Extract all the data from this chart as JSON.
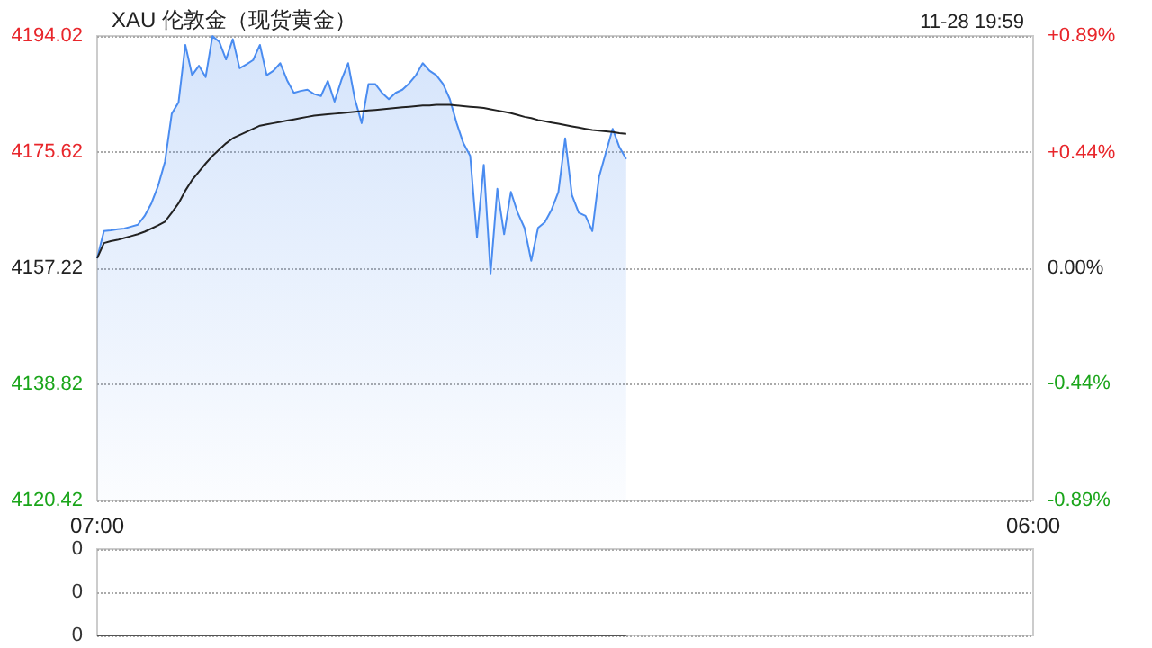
{
  "chart_data": [
    {
      "type": "area",
      "title": "XAU 伦敦金（现货黄金）",
      "annotations": [
        "11-28 19:59"
      ],
      "categories": [
        "07:00",
        null,
        null,
        null,
        null,
        null,
        null,
        null,
        null,
        null,
        null,
        null,
        null,
        null,
        null,
        null,
        null,
        null,
        null,
        null,
        null,
        null,
        null,
        null,
        null,
        null,
        null,
        null,
        null,
        null,
        null,
        null,
        null,
        null,
        null,
        null,
        null,
        null,
        null,
        null,
        null,
        null,
        null,
        null,
        null,
        null,
        null,
        null,
        null,
        null,
        null,
        null,
        null,
        null,
        null,
        null,
        null,
        null,
        null,
        null,
        null,
        null,
        null,
        null,
        null,
        null,
        null,
        null,
        null,
        null,
        null,
        null,
        null,
        null,
        null,
        null,
        null,
        null,
        null,
        null,
        null,
        null,
        null,
        null,
        null,
        null,
        null,
        null,
        null,
        null,
        null,
        null,
        null,
        null,
        null,
        null,
        null,
        null,
        null,
        null,
        null,
        null,
        null,
        null,
        null,
        null,
        null,
        null,
        null,
        null,
        null,
        null,
        null,
        null,
        null,
        null,
        null,
        null,
        null,
        null,
        null,
        null,
        null,
        null,
        null,
        null,
        null,
        null,
        null,
        null,
        null,
        null,
        null,
        null,
        null,
        null,
        null,
        null,
        "06:00"
      ],
      "ylim": [
        4120.42,
        4194.02
      ],
      "yticks": [
        4120.42,
        4138.82,
        4157.22,
        4175.62,
        4194.02
      ],
      "y2lim": [
        -0.89,
        0.89
      ],
      "y2ticks": [
        {
          "value": -0.89,
          "label": "-0.89%"
        },
        {
          "value": -0.44,
          "label": "-0.44%"
        },
        {
          "value": 0,
          "label": "0.00%"
        },
        {
          "value": 0.44,
          "label": "+0.44%"
        },
        {
          "value": 0.89,
          "label": "+0.89%"
        }
      ],
      "grid": "y",
      "series": [
        {
          "color": "#4a8cf0",
          "values": [
            4158.8,
            4163.1,
            4163.2,
            4163.4,
            4163.5,
            4163.8,
            4164.1,
            4165.5,
            4167.5,
            4170.3,
            4174.1,
            4181.7,
            4183.5,
            4192.6,
            4187.8,
            4189.3,
            4187.5,
            4194.0,
            4193.1,
            4190.3,
            4193.5,
            4188.9,
            4189.5,
            4190.2,
            4192.6,
            4187.8,
            4188.5,
            4189.7,
            4187.0,
            4185.0,
            4185.3,
            4185.5,
            4184.8,
            4184.5,
            4186.9,
            4183.6,
            4187.0,
            4189.7,
            4184.0,
            4180.2,
            4186.4,
            4186.4,
            4185.0,
            4184.0,
            4185.0,
            4185.5,
            4186.5,
            4187.8,
            4189.7,
            4188.5,
            4187.8,
            4186.4,
            4184.0,
            4180.2,
            4177.0,
            4175.0,
            4162.1,
            4173.6,
            4156.4,
            4169.8,
            4162.6,
            4169.3,
            4166.0,
            4163.6,
            4158.4,
            4163.6,
            4164.5,
            4166.5,
            4169.3,
            4177.8,
            4168.8,
            4166.0,
            4165.5,
            4163.1,
            4171.7,
            4175.5,
            4179.3,
            4176.4,
            4174.5,
            null,
            null,
            null,
            null,
            null,
            null,
            null,
            null,
            null,
            null,
            null,
            null,
            null,
            null,
            null,
            null,
            null,
            null,
            null,
            null,
            null,
            null,
            null,
            null,
            null,
            null,
            null,
            null,
            null,
            null,
            null,
            null,
            null,
            null,
            null,
            null,
            null,
            null,
            null,
            null,
            null,
            null,
            null,
            null,
            null,
            null,
            null,
            null,
            null,
            null,
            null,
            null,
            null,
            null,
            null,
            null,
            null,
            null,
            null,
            null
          ]
        },
        {
          "type": "line",
          "color": "#222222",
          "values": [
            4158.8,
            4161.2,
            4161.5,
            4161.7,
            4162.0,
            4162.3,
            4162.6,
            4163.0,
            4163.5,
            4164.0,
            4164.6,
            4166.0,
            4167.5,
            4169.5,
            4171.2,
            4172.5,
            4173.8,
            4175.0,
            4176.0,
            4177.0,
            4177.8,
            4178.3,
            4178.8,
            4179.3,
            4179.8,
            4180.0,
            4180.2,
            4180.4,
            4180.6,
            4180.8,
            4181.0,
            4181.2,
            4181.4,
            4181.5,
            4181.6,
            4181.7,
            4181.8,
            4181.9,
            4182.0,
            4182.1,
            4182.2,
            4182.3,
            4182.4,
            4182.5,
            4182.6,
            4182.7,
            4182.8,
            4182.9,
            4183.0,
            4183.0,
            4183.1,
            4183.1,
            4183.1,
            4183.0,
            4182.9,
            4182.8,
            4182.7,
            4182.6,
            4182.4,
            4182.2,
            4182.0,
            4181.8,
            4181.5,
            4181.2,
            4181.0,
            4180.7,
            4180.5,
            4180.3,
            4180.1,
            4179.9,
            4179.7,
            4179.5,
            4179.3,
            4179.1,
            4179.0,
            4178.9,
            4178.8,
            4178.6,
            4178.5,
            null,
            null,
            null,
            null,
            null,
            null,
            null,
            null,
            null,
            null,
            null,
            null,
            null,
            null,
            null,
            null,
            null,
            null,
            null,
            null,
            null,
            null,
            null,
            null,
            null,
            null,
            null,
            null,
            null,
            null,
            null,
            null,
            null,
            null,
            null,
            null,
            null,
            null,
            null,
            null,
            null,
            null,
            null,
            null,
            null,
            null,
            null,
            null,
            null,
            null,
            null,
            null,
            null,
            null,
            null,
            null,
            null,
            null,
            null,
            null
          ]
        }
      ]
    },
    {
      "type": "line",
      "categories": [
        null,
        null,
        null,
        null,
        null,
        null,
        null,
        null,
        null,
        null,
        null,
        null,
        null,
        null,
        null,
        null,
        null,
        null,
        null,
        null,
        null,
        null,
        null,
        null,
        null,
        null,
        null,
        null,
        null,
        null,
        null,
        null,
        null,
        null,
        null,
        null,
        null,
        null,
        null,
        null,
        null,
        null,
        null,
        null,
        null,
        null,
        null,
        null,
        null,
        null,
        null,
        null,
        null,
        null,
        null,
        null,
        null,
        null,
        null,
        null,
        null,
        null,
        null,
        null,
        null,
        null,
        null,
        null,
        null,
        null,
        null,
        null,
        null,
        null,
        null,
        null,
        null,
        null,
        null,
        null,
        null,
        null,
        null,
        null,
        null,
        null,
        null,
        null,
        null,
        null,
        null,
        null,
        null,
        null,
        null,
        null,
        null,
        null,
        null,
        null,
        null,
        null,
        null,
        null,
        null,
        null,
        null,
        null,
        null,
        null,
        null,
        null,
        null,
        null,
        null,
        null,
        null,
        null,
        null,
        null,
        null,
        null,
        null,
        null,
        null,
        null,
        null,
        null,
        null,
        null,
        null,
        null,
        null,
        null,
        null,
        null,
        null,
        null,
        null
      ],
      "ylim": [
        0,
        0.4
      ],
      "yticks": [
        {
          "value": 0,
          "label": "0"
        },
        {
          "value": 0.2,
          "label": "0"
        },
        {
          "value": 0.4,
          "label": "0"
        }
      ],
      "tick_labels": "y",
      "grid": "y",
      "series": [
        {
          "color": "#555555",
          "values": [
            0,
            0,
            0,
            0,
            0,
            0,
            0,
            0,
            0,
            0,
            0,
            0,
            0,
            0,
            0,
            0,
            0,
            0,
            0,
            0,
            0,
            0,
            0,
            0,
            0,
            0,
            0,
            0,
            0,
            0,
            0,
            0,
            0,
            0,
            0,
            0,
            0,
            0,
            0,
            0,
            0,
            0,
            0,
            0,
            0,
            0,
            0,
            0,
            0,
            0,
            0,
            0,
            0,
            0,
            0,
            0,
            0,
            0,
            0,
            0,
            0,
            0,
            0,
            0,
            0,
            0,
            0,
            0,
            0,
            0,
            0,
            0,
            0,
            0,
            0,
            0,
            0,
            0,
            0,
            null,
            null,
            null,
            null,
            null,
            null,
            null,
            null,
            null,
            null,
            null,
            null,
            null,
            null,
            null,
            null,
            null,
            null,
            null,
            null,
            null,
            null,
            null,
            null,
            null,
            null,
            null,
            null,
            null,
            null,
            null,
            null,
            null,
            null,
            null,
            null,
            null,
            null,
            null,
            null,
            null,
            null,
            null,
            null,
            null,
            null,
            null,
            null,
            null,
            null,
            null,
            null,
            null,
            null,
            null,
            null,
            null,
            null,
            null,
            null
          ]
        }
      ]
    }
  ]
}
